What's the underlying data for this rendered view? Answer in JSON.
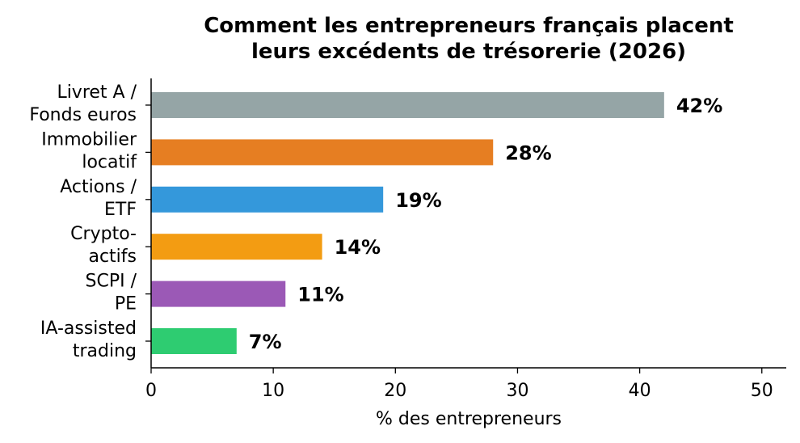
{
  "chart_data": {
    "type": "bar",
    "orientation": "horizontal",
    "title_lines": [
      "Comment les entrepreneurs français placent",
      "leurs excédents de trésorerie (2026)"
    ],
    "xlabel": "% des entrepreneurs",
    "ylabel": "",
    "xlim": [
      0,
      52
    ],
    "xticks": [
      0,
      10,
      20,
      30,
      40,
      50
    ],
    "grid": false,
    "categories": [
      [
        "Livret A /",
        "Fonds euros"
      ],
      [
        "Immobilier",
        "locatif"
      ],
      [
        "Actions /",
        "ETF"
      ],
      [
        "Crypto-",
        "actifs"
      ],
      [
        "SCPI /",
        "PE"
      ],
      [
        "IA-assisted",
        "trading"
      ]
    ],
    "values": [
      42,
      28,
      19,
      14,
      11,
      7
    ],
    "value_labels": [
      "42%",
      "28%",
      "19%",
      "14%",
      "11%",
      "7%"
    ],
    "colors": [
      "#95a5a6",
      "#e67e22",
      "#3498db",
      "#f39c12",
      "#9b59b6",
      "#2ecc71"
    ]
  }
}
